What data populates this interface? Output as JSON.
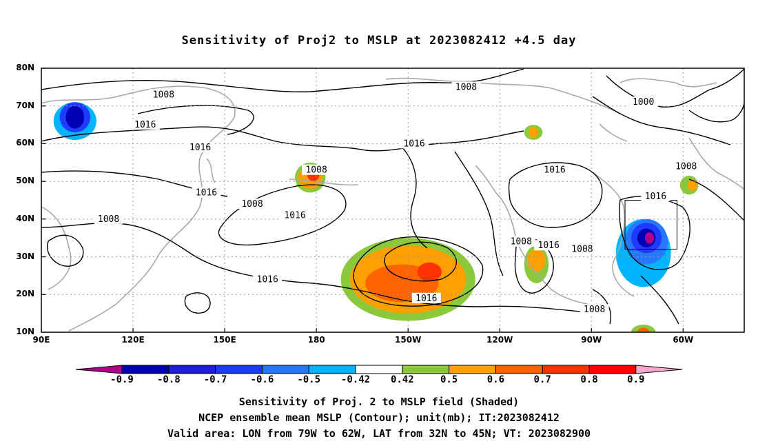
{
  "title": "Sensitivity of Proj2 to MSLP at 2023082412 +4.5 day",
  "lat_labels": [
    "80N",
    "70N",
    "60N",
    "50N",
    "40N",
    "30N",
    "20N",
    "10N"
  ],
  "lon_labels": [
    "90E",
    "120E",
    "150E",
    "180",
    "150W",
    "120W",
    "90W",
    "60W"
  ],
  "contour_labels": [
    {
      "text": "1008",
      "lon": 130,
      "lat": 73
    },
    {
      "text": "1008",
      "lon": -131,
      "lat": 75
    },
    {
      "text": "1000",
      "lon": -73,
      "lat": 71
    },
    {
      "text": "1016",
      "lon": 124,
      "lat": 65
    },
    {
      "text": "1016",
      "lon": 142,
      "lat": 59
    },
    {
      "text": "1016",
      "lon": -148,
      "lat": 60
    },
    {
      "text": "1008",
      "lon": -180,
      "lat": 53
    },
    {
      "text": "1016",
      "lon": -102,
      "lat": 53
    },
    {
      "text": "1008",
      "lon": -59,
      "lat": 54
    },
    {
      "text": "1016",
      "lon": 144,
      "lat": 47
    },
    {
      "text": "1016",
      "lon": -69,
      "lat": 46
    },
    {
      "text": "1008",
      "lon": 159,
      "lat": 44
    },
    {
      "text": "1016",
      "lon": 173,
      "lat": 41
    },
    {
      "text": "1008",
      "lon": 112,
      "lat": 40
    },
    {
      "text": "1008",
      "lon": -113,
      "lat": 34
    },
    {
      "text": "1016",
      "lon": -104,
      "lat": 33
    },
    {
      "text": "1008",
      "lon": -93,
      "lat": 32
    },
    {
      "text": "1016",
      "lon": 164,
      "lat": 24
    },
    {
      "text": "1016",
      "lon": -144,
      "lat": 19
    },
    {
      "text": "1008",
      "lon": -89,
      "lat": 16
    }
  ],
  "valid_area": {
    "lon_min": -79,
    "lon_max": -62,
    "lat_min": 32,
    "lat_max": 45
  },
  "colorbar": {
    "labels": [
      "-0.9",
      "-0.8",
      "-0.7",
      "-0.6",
      "-0.5",
      "-0.42",
      "0.42",
      "0.5",
      "0.6",
      "0.7",
      "0.8",
      "0.9"
    ],
    "colors": [
      "#b0008a",
      "#0000b4",
      "#1e1edc",
      "#1e3cff",
      "#2878ff",
      "#00b4ff",
      "#ffffff",
      "#8cc83c",
      "#ffa000",
      "#ff6400",
      "#ff3200",
      "#ff0000",
      "#f7a7c9"
    ]
  },
  "shading": [
    {
      "lon": 101,
      "lat": 66,
      "rx": 7,
      "ry": 5,
      "color": "#00b4ff"
    },
    {
      "lon": 101,
      "lat": 67,
      "rx": 5,
      "ry": 4,
      "color": "#1e3cff"
    },
    {
      "lon": 101,
      "lat": 67,
      "rx": 3,
      "ry": 3,
      "color": "#0000b4"
    },
    {
      "lon": 178,
      "lat": 51,
      "rx": 5,
      "ry": 4,
      "color": "#8cc83c"
    },
    {
      "lon": 178,
      "lat": 51,
      "rx": 4,
      "ry": 3,
      "color": "#ffa000"
    },
    {
      "lon": 179,
      "lat": 52,
      "rx": 2,
      "ry": 2,
      "color": "#ff3200"
    },
    {
      "lon": -109,
      "lat": 63,
      "rx": 3,
      "ry": 2,
      "color": "#8cc83c"
    },
    {
      "lon": -109,
      "lat": 63,
      "rx": 1.5,
      "ry": 1.5,
      "color": "#ffa000"
    },
    {
      "lon": -58,
      "lat": 49,
      "rx": 3,
      "ry": 2.5,
      "color": "#8cc83c"
    },
    {
      "lon": -57,
      "lat": 49,
      "rx": 1.5,
      "ry": 1.5,
      "color": "#ffa000"
    },
    {
      "lon": -150,
      "lat": 24,
      "rx": 22,
      "ry": 11,
      "color": "#8cc83c"
    },
    {
      "lon": -150,
      "lat": 24,
      "rx": 19,
      "ry": 9,
      "color": "#ffa000"
    },
    {
      "lon": -152,
      "lat": 23,
      "rx": 12,
      "ry": 5,
      "color": "#ff6400"
    },
    {
      "lon": -143,
      "lat": 26,
      "rx": 4,
      "ry": 2.5,
      "color": "#ff3200"
    },
    {
      "lon": -108,
      "lat": 28,
      "rx": 4,
      "ry": 5,
      "color": "#8cc83c"
    },
    {
      "lon": -108,
      "lat": 29,
      "rx": 3,
      "ry": 3,
      "color": "#ffa000"
    },
    {
      "lon": -73,
      "lat": 31,
      "rx": 9,
      "ry": 9,
      "color": "#00b4ff"
    },
    {
      "lon": -72,
      "lat": 34,
      "rx": 7,
      "ry": 6,
      "color": "#2878ff"
    },
    {
      "lon": -72,
      "lat": 35,
      "rx": 5,
      "ry": 4,
      "color": "#1e3cff"
    },
    {
      "lon": -72,
      "lat": 35,
      "rx": 3,
      "ry": 2.5,
      "color": "#0000b4"
    },
    {
      "lon": -71,
      "lat": 35,
      "rx": 1.5,
      "ry": 1.5,
      "color": "#b0008a"
    },
    {
      "lon": -73,
      "lat": 10,
      "rx": 4,
      "ry": 2,
      "color": "#8cc83c"
    },
    {
      "lon": -73,
      "lat": 10,
      "rx": 2,
      "ry": 1.2,
      "color": "#ff6400"
    }
  ],
  "captions": [
    "Sensitivity of Proj. 2 to MSLP field (Shaded)",
    "NCEP ensemble mean MSLP (Contour); unit(mb); IT:2023082412",
    "Valid area: LON from 79W to 62W, LAT from 32N to 45N; VT: 2023082900"
  ]
}
